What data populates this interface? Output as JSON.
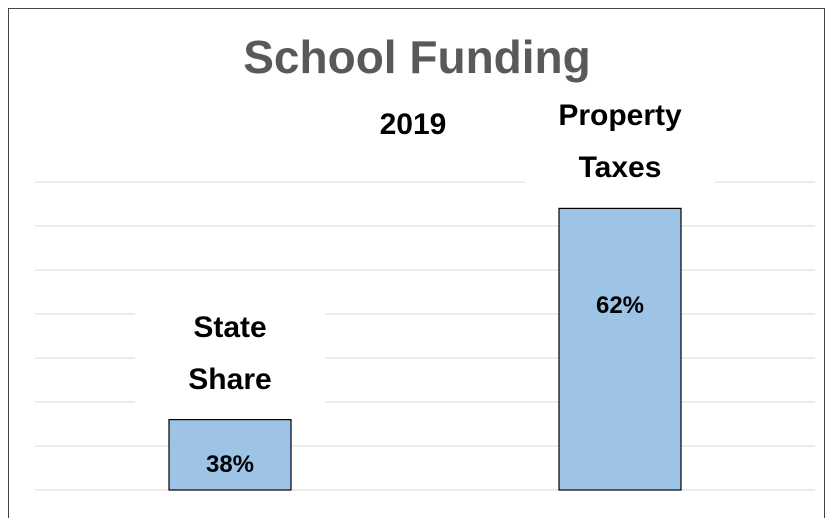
{
  "chart_data": {
    "type": "bar",
    "title": "School Funding",
    "subtitle": "2019",
    "categories": [
      "State Share",
      "Property Taxes"
    ],
    "values": [
      38,
      62
    ],
    "value_labels": [
      "38%",
      "62%"
    ],
    "color": "#9dc3e6",
    "ylim": [
      30,
      65
    ],
    "yticks": [
      30,
      35,
      40,
      45,
      50,
      55,
      60,
      65
    ],
    "grid": true
  }
}
